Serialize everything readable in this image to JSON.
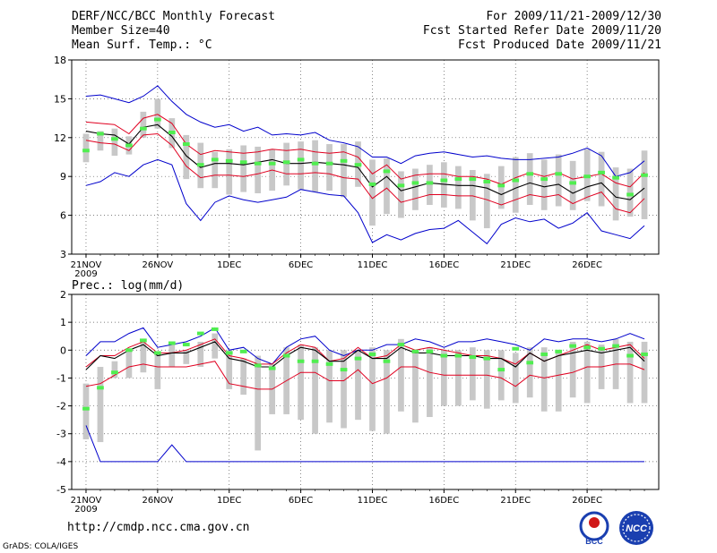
{
  "header": {
    "title": "DERF/NCC/BCC Monthly Forecast",
    "member_size": "Member Size=40",
    "variable": "Mean Surf. Temp.: °C",
    "forecast_period": "For 2009/11/21-2009/12/30",
    "fcst_started": "Fcst Started Refer Date 2009/11/20",
    "fcst_produced": "Fcst Produced Date 2009/11/21"
  },
  "footer": {
    "url": "http://cmdp.ncc.cma.gov.cn",
    "credit": "GrADS: COLA/IGES",
    "logo_left_text": "BCC",
    "logo_right_text": "NCC"
  },
  "colors": {
    "bound": "#0000cc",
    "spread": "#e00020",
    "mean": "#000000",
    "obs": "#50ee50",
    "box": "#c8c8c8",
    "grid": "#555555"
  },
  "chart_data": [
    {
      "type": "line",
      "title": "Mean Surf. Temp.: °C",
      "ylim": [
        3,
        18
      ],
      "yticks": [
        "3",
        "6",
        "9",
        "12",
        "15",
        "18"
      ],
      "xticks": [
        {
          "day": 1,
          "label": "21NOV",
          "sub": "2009"
        },
        {
          "day": 6,
          "label": "26NOV"
        },
        {
          "day": 11,
          "label": "1DEC"
        },
        {
          "day": 16,
          "label": "6DEC"
        },
        {
          "day": 21,
          "label": "11DEC"
        },
        {
          "day": 26,
          "label": "16DEC"
        },
        {
          "day": 31,
          "label": "21DEC"
        },
        {
          "day": 36,
          "label": "26DEC"
        }
      ],
      "x": [
        1,
        2,
        3,
        4,
        5,
        6,
        7,
        8,
        9,
        10,
        11,
        12,
        13,
        14,
        15,
        16,
        17,
        18,
        19,
        20,
        21,
        22,
        23,
        24,
        25,
        26,
        27,
        28,
        29,
        30,
        31,
        32,
        33,
        34,
        35,
        36,
        37,
        38,
        39,
        40
      ],
      "series": [
        {
          "name": "upper-bound",
          "role": "bound",
          "values": [
            15.2,
            15.3,
            15.0,
            14.7,
            15.2,
            16.0,
            14.8,
            13.8,
            13.2,
            12.8,
            13.0,
            12.5,
            12.8,
            12.2,
            12.3,
            12.2,
            12.4,
            11.8,
            11.6,
            11.3,
            10.5,
            10.5,
            10.0,
            10.6,
            10.8,
            10.9,
            10.7,
            10.5,
            10.6,
            10.4,
            10.3,
            10.3,
            10.4,
            10.5,
            10.8,
            11.2,
            10.6,
            9.0,
            9.3,
            10.2
          ]
        },
        {
          "name": "upper-spread",
          "role": "spread",
          "values": [
            13.2,
            13.1,
            13.0,
            12.3,
            13.5,
            13.8,
            13.1,
            11.5,
            10.7,
            11.0,
            10.9,
            10.8,
            10.9,
            11.1,
            11.0,
            11.1,
            10.9,
            10.8,
            10.9,
            10.5,
            9.2,
            9.9,
            8.8,
            9.1,
            9.2,
            9.2,
            9.0,
            9.0,
            8.8,
            8.4,
            8.9,
            9.3,
            9.0,
            9.3,
            8.8,
            9.0,
            9.2,
            8.5,
            8.2,
            9.3
          ]
        },
        {
          "name": "ensemble-mean",
          "role": "mean",
          "values": [
            12.5,
            12.3,
            12.2,
            11.5,
            12.8,
            13.0,
            12.1,
            10.6,
            9.7,
            10.0,
            10.0,
            9.9,
            10.1,
            10.3,
            10.0,
            10.0,
            10.1,
            10.0,
            9.9,
            9.7,
            8.2,
            9.0,
            7.9,
            8.2,
            8.5,
            8.4,
            8.3,
            8.3,
            8.1,
            7.6,
            8.1,
            8.5,
            8.2,
            8.4,
            7.7,
            8.2,
            8.5,
            7.4,
            7.2,
            8.1
          ]
        },
        {
          "name": "lower-spread",
          "role": "spread",
          "values": [
            11.8,
            11.6,
            11.5,
            11.0,
            12.2,
            12.3,
            11.4,
            9.8,
            8.9,
            9.1,
            9.1,
            9.0,
            9.2,
            9.5,
            9.2,
            9.2,
            9.3,
            9.2,
            8.9,
            8.8,
            7.3,
            8.1,
            7.0,
            7.3,
            7.6,
            7.6,
            7.5,
            7.5,
            7.2,
            6.8,
            7.2,
            7.6,
            7.4,
            7.6,
            6.9,
            7.4,
            7.8,
            6.5,
            6.2,
            7.3
          ]
        },
        {
          "name": "lower-bound",
          "role": "bound",
          "values": [
            8.3,
            8.6,
            9.3,
            9.0,
            9.9,
            10.3,
            9.9,
            6.9,
            5.6,
            7.0,
            7.5,
            7.2,
            7.0,
            7.2,
            7.4,
            8.0,
            7.8,
            7.6,
            7.5,
            6.2,
            3.9,
            4.5,
            4.1,
            4.6,
            4.9,
            5.0,
            5.6,
            4.7,
            3.8,
            5.3,
            5.8,
            5.5,
            5.7,
            5.0,
            5.4,
            6.2,
            4.8,
            4.5,
            4.2,
            5.2
          ]
        }
      ],
      "box_low": [
        10.1,
        11.0,
        10.6,
        10.7,
        12.0,
        12.7,
        11.2,
        8.8,
        8.1,
        8.1,
        7.6,
        7.8,
        7.7,
        7.9,
        8.3,
        8.0,
        7.8,
        7.9,
        7.4,
        8.2,
        5.2,
        6.1,
        5.8,
        6.4,
        6.8,
        6.6,
        6.5,
        5.6,
        5.0,
        6.5,
        6.2,
        6.8,
        6.4,
        6.7,
        6.4,
        7.1,
        6.7,
        5.6,
        5.9,
        5.7
      ],
      "box_high": [
        12.3,
        12.5,
        12.7,
        12.1,
        14.0,
        15.0,
        13.5,
        12.2,
        11.6,
        10.9,
        11.1,
        11.4,
        11.3,
        11.1,
        11.6,
        11.7,
        11.8,
        11.5,
        11.5,
        11.7,
        10.3,
        10.4,
        9.4,
        9.6,
        9.9,
        10.1,
        9.8,
        9.5,
        9.2,
        9.8,
        10.5,
        10.8,
        10.3,
        10.7,
        10.2,
        11.1,
        10.9,
        9.7,
        9.6,
        11.0
      ],
      "obs": [
        11.0,
        12.3,
        11.9,
        11.4,
        12.7,
        13.4,
        12.4,
        11.5,
        9.9,
        10.3,
        10.2,
        10.1,
        10.0,
        10.0,
        10.1,
        10.3,
        10.0,
        10.0,
        10.2,
        9.9,
        8.4,
        9.4,
        8.3,
        8.5,
        8.5,
        8.7,
        8.8,
        8.8,
        8.6,
        8.3,
        8.7,
        9.2,
        8.8,
        9.2,
        8.5,
        9.0,
        9.3,
        8.9,
        7.6,
        9.1
      ]
    },
    {
      "type": "line",
      "title": "Prec.: log(mm/d)",
      "ylim": [
        -5,
        2
      ],
      "yticks": [
        "-5",
        "-4",
        "-3",
        "-2",
        "-1",
        "0",
        "1",
        "2"
      ],
      "xticks": [
        {
          "day": 1,
          "label": "21NOV",
          "sub": "2009"
        },
        {
          "day": 6,
          "label": "26NOV"
        },
        {
          "day": 11,
          "label": "1DEC"
        },
        {
          "day": 16,
          "label": "6DEC"
        },
        {
          "day": 21,
          "label": "11DEC"
        },
        {
          "day": 26,
          "label": "16DEC"
        },
        {
          "day": 31,
          "label": "21DEC"
        },
        {
          "day": 36,
          "label": "26DEC"
        }
      ],
      "x": [
        1,
        2,
        3,
        4,
        5,
        6,
        7,
        8,
        9,
        10,
        11,
        12,
        13,
        14,
        15,
        16,
        17,
        18,
        19,
        20,
        21,
        22,
        23,
        24,
        25,
        26,
        27,
        28,
        29,
        30,
        31,
        32,
        33,
        34,
        35,
        36,
        37,
        38,
        39,
        40
      ],
      "series": [
        {
          "name": "upper-bound",
          "role": "bound",
          "values": [
            -0.2,
            0.3,
            0.3,
            0.6,
            0.8,
            0.1,
            0.2,
            0.3,
            0.5,
            0.8,
            0.0,
            0.1,
            -0.3,
            -0.5,
            0.1,
            0.4,
            0.5,
            0.0,
            -0.2,
            0.0,
            0.0,
            0.2,
            0.2,
            0.4,
            0.3,
            0.1,
            0.3,
            0.3,
            0.4,
            0.3,
            0.2,
            0.0,
            0.4,
            0.3,
            0.4,
            0.4,
            0.3,
            0.4,
            0.6,
            0.4
          ]
        },
        {
          "name": "upper-spread",
          "role": "spread",
          "values": [
            -0.6,
            -0.2,
            -0.2,
            0.1,
            0.3,
            -0.1,
            -0.1,
            0.0,
            0.2,
            0.4,
            -0.2,
            -0.3,
            -0.5,
            -0.5,
            -0.1,
            0.2,
            0.1,
            -0.4,
            -0.3,
            0.1,
            -0.3,
            -0.2,
            0.2,
            0.0,
            0.1,
            0.0,
            -0.1,
            -0.2,
            -0.2,
            -0.3,
            -0.5,
            -0.1,
            -0.4,
            -0.2,
            0.0,
            0.2,
            0.0,
            0.1,
            0.2,
            -0.3
          ]
        },
        {
          "name": "ensemble-mean",
          "role": "mean",
          "values": [
            -0.7,
            -0.2,
            -0.3,
            0.0,
            0.2,
            -0.2,
            -0.1,
            -0.1,
            0.1,
            0.3,
            -0.3,
            -0.4,
            -0.6,
            -0.6,
            -0.2,
            0.1,
            0.0,
            -0.4,
            -0.4,
            0.0,
            -0.3,
            -0.3,
            0.1,
            -0.1,
            -0.1,
            -0.2,
            -0.2,
            -0.2,
            -0.3,
            -0.3,
            -0.6,
            -0.1,
            -0.4,
            -0.2,
            -0.1,
            0.0,
            -0.1,
            0.0,
            0.1,
            -0.4
          ]
        },
        {
          "name": "lower-spread",
          "role": "spread",
          "values": [
            -1.3,
            -1.2,
            -0.9,
            -0.6,
            -0.5,
            -0.6,
            -0.6,
            -0.6,
            -0.5,
            -0.4,
            -1.2,
            -1.3,
            -1.4,
            -1.4,
            -1.1,
            -0.8,
            -0.8,
            -1.1,
            -1.1,
            -0.7,
            -1.2,
            -1.0,
            -0.6,
            -0.6,
            -0.8,
            -0.9,
            -0.9,
            -0.9,
            -0.9,
            -1.0,
            -1.3,
            -0.9,
            -1.0,
            -0.9,
            -0.8,
            -0.6,
            -0.6,
            -0.5,
            -0.5,
            -0.7
          ]
        },
        {
          "name": "lower-bound",
          "role": "bound",
          "values": [
            -2.7,
            -4.0,
            -4.0,
            -4.0,
            -4.0,
            -4.0,
            -3.4,
            -4.0,
            -4.0,
            -4.0,
            -4.0,
            -4.0,
            -4.0,
            -4.0,
            -4.0,
            -4.0,
            -4.0,
            -4.0,
            -4.0,
            -4.0,
            -4.0,
            -4.0,
            -4.0,
            -4.0,
            -4.0,
            -4.0,
            -4.0,
            -4.0,
            -4.0,
            -4.0,
            -4.0,
            -4.0,
            -4.0,
            -4.0,
            -4.0,
            -4.0,
            -4.0,
            -4.0,
            -4.0,
            -4.0
          ]
        }
      ],
      "box_low": [
        -3.2,
        -3.3,
        -1.0,
        -1.0,
        -0.8,
        -1.4,
        -0.6,
        -0.5,
        -0.6,
        -0.3,
        -1.4,
        -1.6,
        -3.6,
        -2.3,
        -2.3,
        -2.5,
        -3.0,
        -2.6,
        -2.8,
        -2.5,
        -2.9,
        -3.0,
        -2.2,
        -2.6,
        -2.4,
        -2.0,
        -2.0,
        -1.8,
        -2.1,
        -1.8,
        -1.9,
        -1.7,
        -2.2,
        -2.2,
        -1.7,
        -1.9,
        -1.4,
        -1.4,
        -1.9,
        -1.9
      ],
      "box_high": [
        -1.2,
        -0.6,
        -0.4,
        0.0,
        0.3,
        -0.1,
        0.3,
        0.0,
        0.3,
        0.6,
        0.0,
        -0.3,
        -0.2,
        -0.5,
        0.1,
        0.2,
        0.1,
        0.0,
        0.0,
        0.0,
        0.1,
        0.0,
        0.4,
        0.0,
        0.1,
        0.0,
        0.0,
        0.1,
        0.0,
        0.0,
        -0.1,
        0.1,
        0.1,
        0.0,
        0.3,
        0.3,
        0.2,
        0.4,
        0.3,
        0.3
      ],
      "obs": [
        -2.1,
        -1.35,
        -0.8,
        0.0,
        0.35,
        -0.1,
        0.25,
        0.2,
        0.6,
        0.75,
        -0.1,
        -0.05,
        -0.55,
        -0.65,
        -0.2,
        -0.4,
        -0.4,
        -0.5,
        -0.7,
        -0.3,
        -0.15,
        -0.4,
        0.2,
        -0.05,
        -0.05,
        -0.2,
        -0.2,
        -0.25,
        -0.3,
        -0.7,
        0.05,
        -0.45,
        -0.15,
        -0.05,
        0.15,
        0.1,
        0.05,
        0.15,
        -0.2,
        -0.15
      ]
    }
  ]
}
